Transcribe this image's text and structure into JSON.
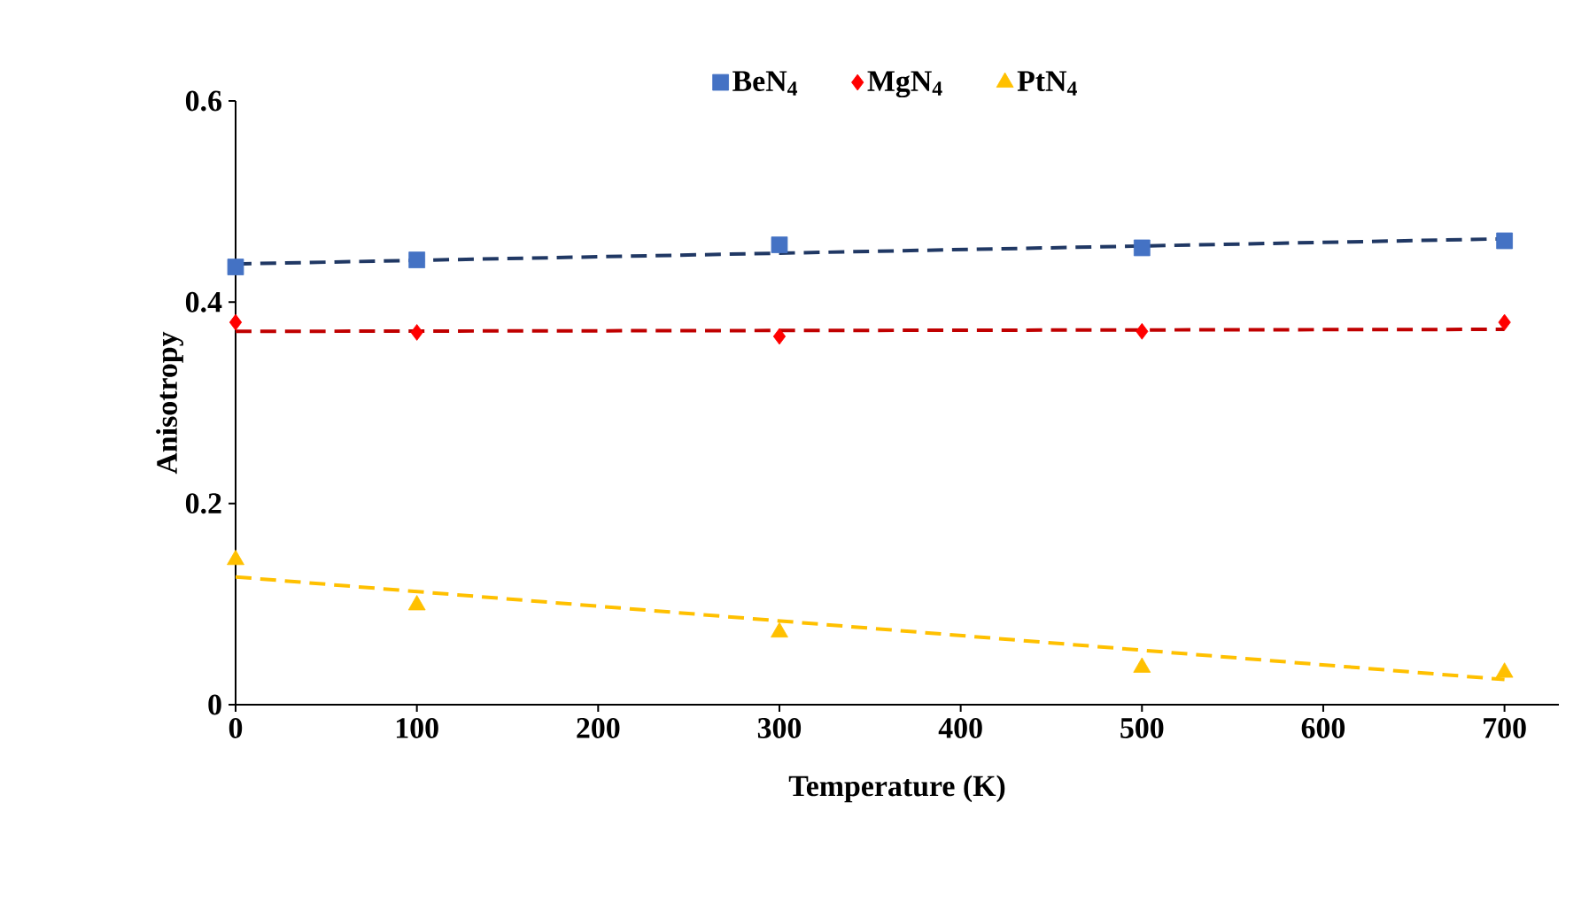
{
  "chart_data": {
    "type": "scatter",
    "xlabel": "Temperature (K)",
    "ylabel": "Anisotropy",
    "xlim": [
      0,
      730
    ],
    "xticks": [
      0,
      100,
      200,
      300,
      400,
      500,
      600,
      700
    ],
    "ylim": [
      0,
      0.6
    ],
    "yticks": [
      0,
      0.2,
      0.4,
      0.6
    ],
    "grid": false,
    "legend": "top",
    "series": [
      {
        "name": "BeN$_{4}$",
        "color": "#4472c4",
        "marker": "square",
        "x": [
          0,
          100,
          300,
          500,
          700
        ],
        "values": [
          0.435,
          0.442,
          0.457,
          0.454,
          0.461
        ]
      },
      {
        "name": "MgN$_{4}$",
        "color": "#ff0000",
        "marker": "diamond",
        "x": [
          0,
          100,
          300,
          500,
          700
        ],
        "values": [
          0.38,
          0.37,
          0.366,
          0.371,
          0.38
        ]
      },
      {
        "name": "PtN$_{4}$",
        "color": "#ffc000",
        "marker": "triangle",
        "x": [
          0,
          100,
          300,
          500,
          700
        ],
        "values": [
          0.144,
          0.099,
          0.072,
          0.037,
          0.032
        ]
      },
      {
        "type": "line",
        "color": "#203864",
        "line_style": "dashed",
        "marker": "none",
        "x": [
          0,
          700
        ],
        "values": [
          0.438,
          0.463
        ]
      },
      {
        "type": "line",
        "color": "#c00000",
        "line_style": "dashed",
        "marker": "none",
        "x": [
          0,
          700
        ],
        "values": [
          0.371,
          0.373
        ]
      },
      {
        "type": "line",
        "color": "#ffc000",
        "line_style": "dashed",
        "marker": "none",
        "x": [
          0,
          700
        ],
        "values": [
          0.127,
          0.025
        ]
      }
    ]
  }
}
